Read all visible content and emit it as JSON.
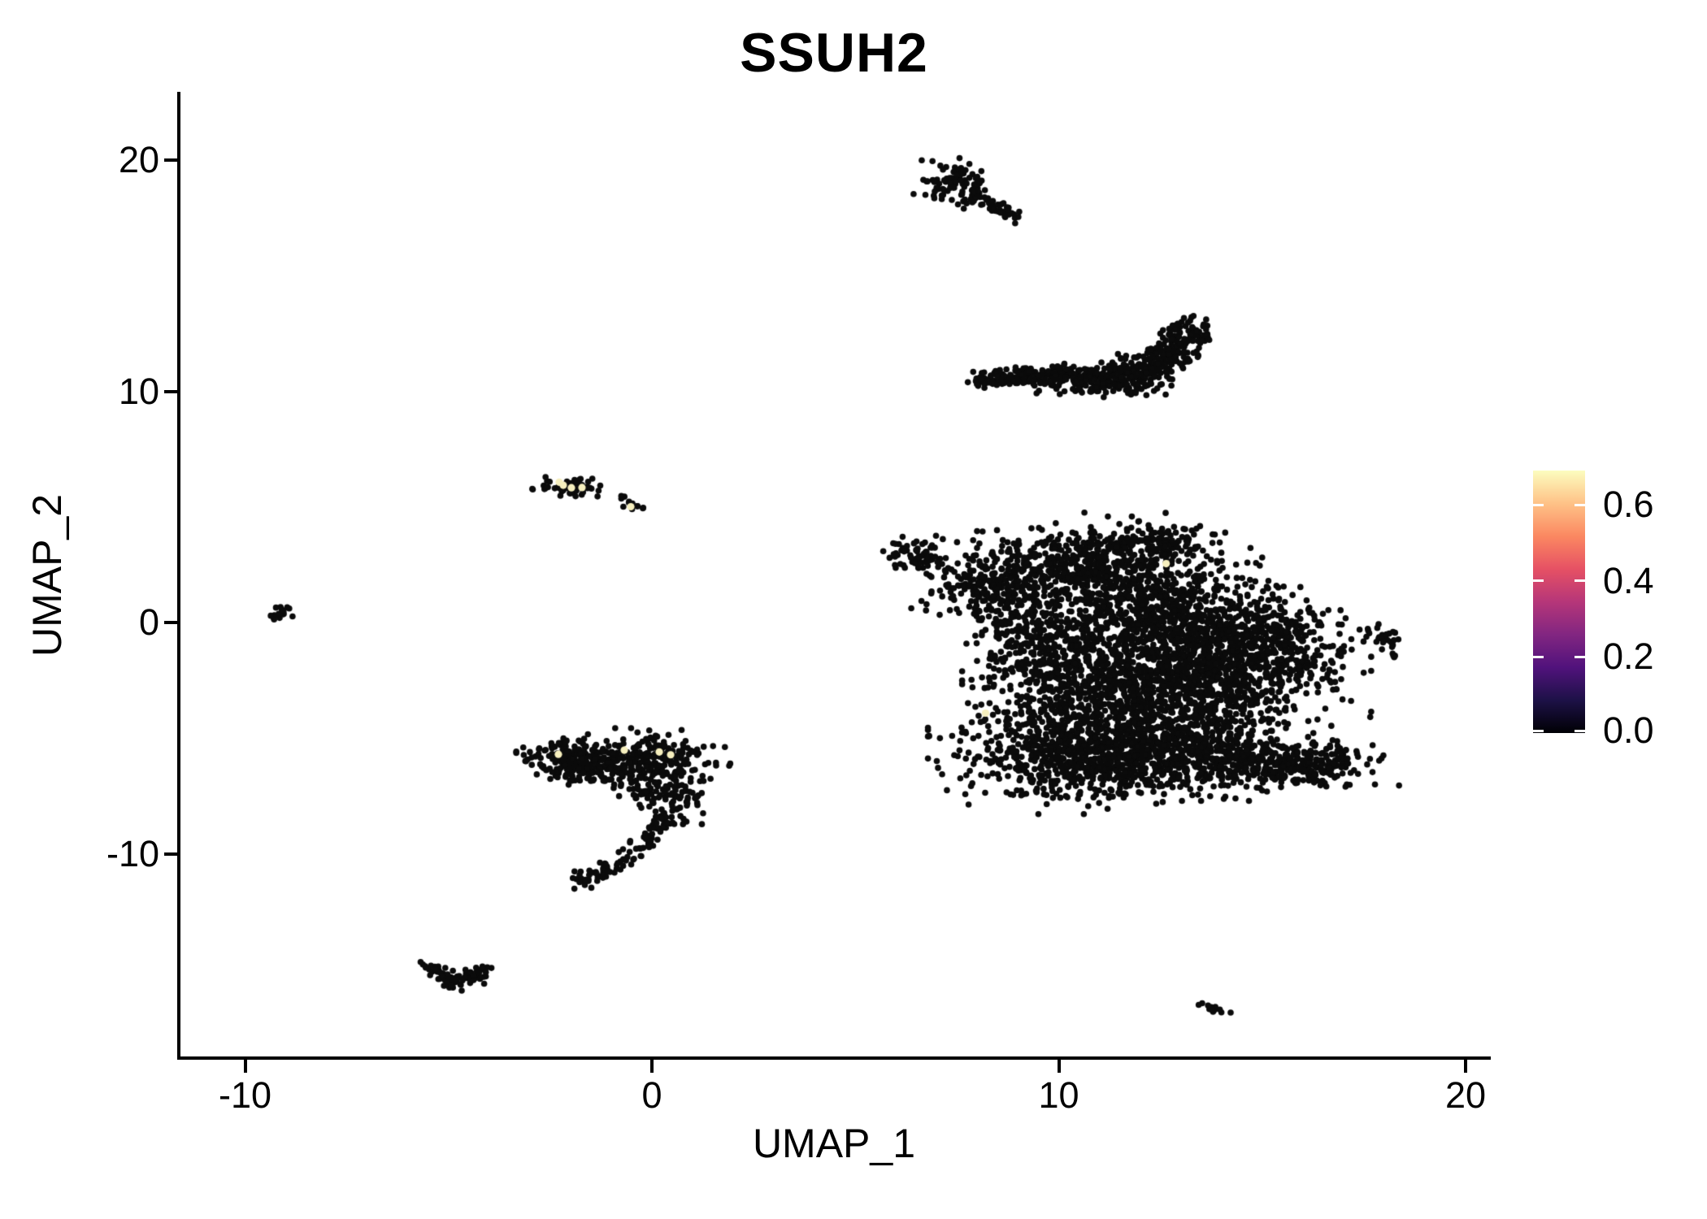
{
  "title": "SSUH2",
  "axes": {
    "x": {
      "label": "UMAP_1",
      "range": [
        -11.59,
        20.54
      ],
      "ticks": [
        {
          "label": "-10",
          "value": -10
        },
        {
          "label": "0",
          "value": 0
        },
        {
          "label": "10",
          "value": 10
        },
        {
          "label": "20",
          "value": 20
        }
      ]
    },
    "y": {
      "label": "UMAP_2",
      "range": [
        -18.81,
        22.88
      ],
      "ticks": [
        {
          "label": "-10",
          "value": -10
        },
        {
          "label": "0",
          "value": 0
        },
        {
          "label": "10",
          "value": 10
        },
        {
          "label": "20",
          "value": 20
        }
      ]
    }
  },
  "colorbar": {
    "max_value": 0.69,
    "colormap": "magma",
    "gradient_stops": [
      "#000004",
      "#1d1147",
      "#51127c",
      "#822681",
      "#b63679",
      "#e65164",
      "#fb8861",
      "#fec287",
      "#fcfdbf"
    ],
    "ticks": [
      {
        "label": "0.6",
        "value": 0.6
      },
      {
        "label": "0.4",
        "value": 0.4
      },
      {
        "label": "0.2",
        "value": 0.2
      },
      {
        "label": "0.0",
        "value": 0.0
      }
    ]
  },
  "colors": {
    "point_zero": "#0b0b0b",
    "point_high": "#f6efbe",
    "axis": "#000000",
    "background": "#ffffff"
  },
  "chart_data": {
    "type": "scatter",
    "title": "SSUH2",
    "xlabel": "UMAP_1",
    "ylabel": "UMAP_2",
    "xlim": [
      -11.59,
      20.54
    ],
    "ylim": [
      -18.81,
      22.88
    ],
    "legend_position": "right",
    "grid": false,
    "clusters": [
      {
        "name": "apex-spindle-core",
        "type": "gauss",
        "center": [
          7.45,
          18.95
        ],
        "sd": [
          0.38,
          0.42
        ],
        "count": 90
      },
      {
        "name": "apex-spindle-tail",
        "type": "path",
        "path": [
          [
            7.7,
            18.6
          ],
          [
            8.3,
            18.1
          ],
          [
            9.0,
            17.45
          ]
        ],
        "jitter": 0.14,
        "count": 55
      },
      {
        "name": "crescent-left",
        "type": "path",
        "path": [
          [
            7.95,
            10.45
          ],
          [
            9.2,
            10.65
          ],
          [
            10.4,
            10.68
          ]
        ],
        "jitter": 0.17,
        "count": 180
      },
      {
        "name": "crescent-right",
        "type": "path",
        "path": [
          [
            10.4,
            10.6
          ],
          [
            11.5,
            10.62
          ],
          [
            12.2,
            11.0
          ],
          [
            12.8,
            11.8
          ],
          [
            13.3,
            12.8
          ]
        ],
        "jitter": 0.3,
        "count": 430
      },
      {
        "name": "crescent-under",
        "type": "gauss",
        "center": [
          11.2,
          10.15
        ],
        "sd": [
          0.8,
          0.2
        ],
        "count": 60
      },
      {
        "name": "main-top-band",
        "type": "gauss",
        "center": [
          10.8,
          2.3
        ],
        "sd": [
          1.5,
          0.85
        ],
        "count": 650
      },
      {
        "name": "main-top-ridge",
        "type": "gauss",
        "center": [
          12.2,
          3.55
        ],
        "sd": [
          0.8,
          0.45
        ],
        "count": 120
      },
      {
        "name": "main-topleft-arm",
        "type": "gauss",
        "center": [
          8.4,
          1.4
        ],
        "sd": [
          0.75,
          0.8
        ],
        "count": 220
      },
      {
        "name": "main-topleft-tip",
        "type": "gauss",
        "center": [
          6.55,
          2.95
        ],
        "sd": [
          0.32,
          0.35
        ],
        "count": 60
      },
      {
        "name": "main-upper-right",
        "type": "gauss",
        "center": [
          12.7,
          0.4
        ],
        "sd": [
          1.2,
          0.95
        ],
        "count": 550
      },
      {
        "name": "main-right",
        "type": "gauss",
        "center": [
          13.9,
          -2.2
        ],
        "sd": [
          1.4,
          1.15
        ],
        "count": 850
      },
      {
        "name": "main-center",
        "type": "gauss",
        "center": [
          11.0,
          -2.4
        ],
        "sd": [
          1.25,
          1.3
        ],
        "count": 750
      },
      {
        "name": "main-left-edge",
        "type": "gauss",
        "center": [
          9.3,
          -0.8
        ],
        "sd": [
          0.55,
          1.1
        ],
        "count": 180
      },
      {
        "name": "main-right-bump",
        "type": "gauss",
        "center": [
          15.0,
          -0.5
        ],
        "sd": [
          0.85,
          0.75
        ],
        "count": 260
      },
      {
        "name": "main-bottom",
        "type": "gauss",
        "center": [
          10.7,
          -5.7
        ],
        "sd": [
          1.45,
          0.95
        ],
        "count": 850
      },
      {
        "name": "main-bottom-right",
        "type": "gauss",
        "center": [
          13.4,
          -5.4
        ],
        "sd": [
          1.15,
          0.85
        ],
        "count": 550
      },
      {
        "name": "main-bottomright-arm",
        "type": "gauss",
        "center": [
          15.8,
          -6.1
        ],
        "sd": [
          0.95,
          0.5
        ],
        "count": 300
      },
      {
        "name": "island-yellow",
        "type": "gauss",
        "center": [
          -2.05,
          5.9
        ],
        "sd": [
          0.33,
          0.22
        ],
        "count": 70
      },
      {
        "name": "island-yellow-small",
        "type": "gauss",
        "center": [
          -0.52,
          5.05
        ],
        "sd": [
          0.18,
          0.12
        ],
        "count": 12
      },
      {
        "name": "island-dot",
        "type": "gauss",
        "center": [
          -0.78,
          5.5
        ],
        "sd": [
          0.05,
          0.05
        ],
        "count": 2
      },
      {
        "name": "west-dot",
        "type": "gauss",
        "center": [
          -9.15,
          0.45
        ],
        "sd": [
          0.2,
          0.16
        ],
        "count": 18
      },
      {
        "name": "east-blob-a",
        "type": "gauss",
        "center": [
          18.0,
          -0.6
        ],
        "sd": [
          0.25,
          0.2
        ],
        "count": 16
      },
      {
        "name": "east-blob-b",
        "type": "gauss",
        "center": [
          18.15,
          -1.2
        ],
        "sd": [
          0.12,
          0.3
        ],
        "count": 10
      },
      {
        "name": "east-blob-c",
        "type": "gauss",
        "center": [
          17.62,
          -0.35
        ],
        "sd": [
          0.1,
          0.08
        ],
        "count": 4
      },
      {
        "name": "hook-band-left",
        "type": "gauss",
        "center": [
          -1.85,
          -5.95
        ],
        "sd": [
          0.55,
          0.42
        ],
        "count": 230
      },
      {
        "name": "hook-band-right",
        "type": "gauss",
        "center": [
          -0.1,
          -5.9
        ],
        "sd": [
          0.75,
          0.5
        ],
        "count": 260
      },
      {
        "name": "hook-mid",
        "type": "gauss",
        "center": [
          0.55,
          -7.35
        ],
        "sd": [
          0.4,
          0.5
        ],
        "count": 70
      },
      {
        "name": "hook-mid-sparse",
        "type": "gauss",
        "center": [
          -0.5,
          -7.2
        ],
        "sd": [
          0.5,
          0.45
        ],
        "count": 35
      },
      {
        "name": "hook-tail",
        "type": "path",
        "path": [
          [
            0.5,
            -8.0
          ],
          [
            0.15,
            -9.0
          ],
          [
            -0.5,
            -10.0
          ],
          [
            -1.3,
            -10.8
          ],
          [
            -1.95,
            -11.35
          ]
        ],
        "jitter": 0.16,
        "count": 110
      },
      {
        "name": "southwest-chevron",
        "type": "path",
        "path": [
          [
            -5.45,
            -14.9
          ],
          [
            -5.0,
            -15.35
          ],
          [
            -4.75,
            -15.6
          ],
          [
            -4.45,
            -15.3
          ],
          [
            -4.05,
            -14.9
          ]
        ],
        "jitter": 0.16,
        "count": 85
      },
      {
        "name": "south-smear",
        "type": "path",
        "path": [
          [
            13.45,
            -16.4
          ],
          [
            14.05,
            -16.9
          ]
        ],
        "jitter": 0.09,
        "count": 14
      }
    ],
    "highlighted_points": {
      "value": 0.65,
      "color": "#f6efbe",
      "points": [
        [
          -2.28,
          6.08
        ],
        [
          -2.18,
          5.95
        ],
        [
          -1.98,
          5.84
        ],
        [
          -1.72,
          5.85
        ],
        [
          -0.52,
          5.02
        ],
        [
          -2.3,
          -5.68
        ],
        [
          -0.68,
          -5.5
        ],
        [
          0.18,
          -5.58
        ],
        [
          0.46,
          -5.7
        ],
        [
          12.64,
          2.56
        ],
        [
          8.2,
          -3.9
        ]
      ]
    }
  }
}
